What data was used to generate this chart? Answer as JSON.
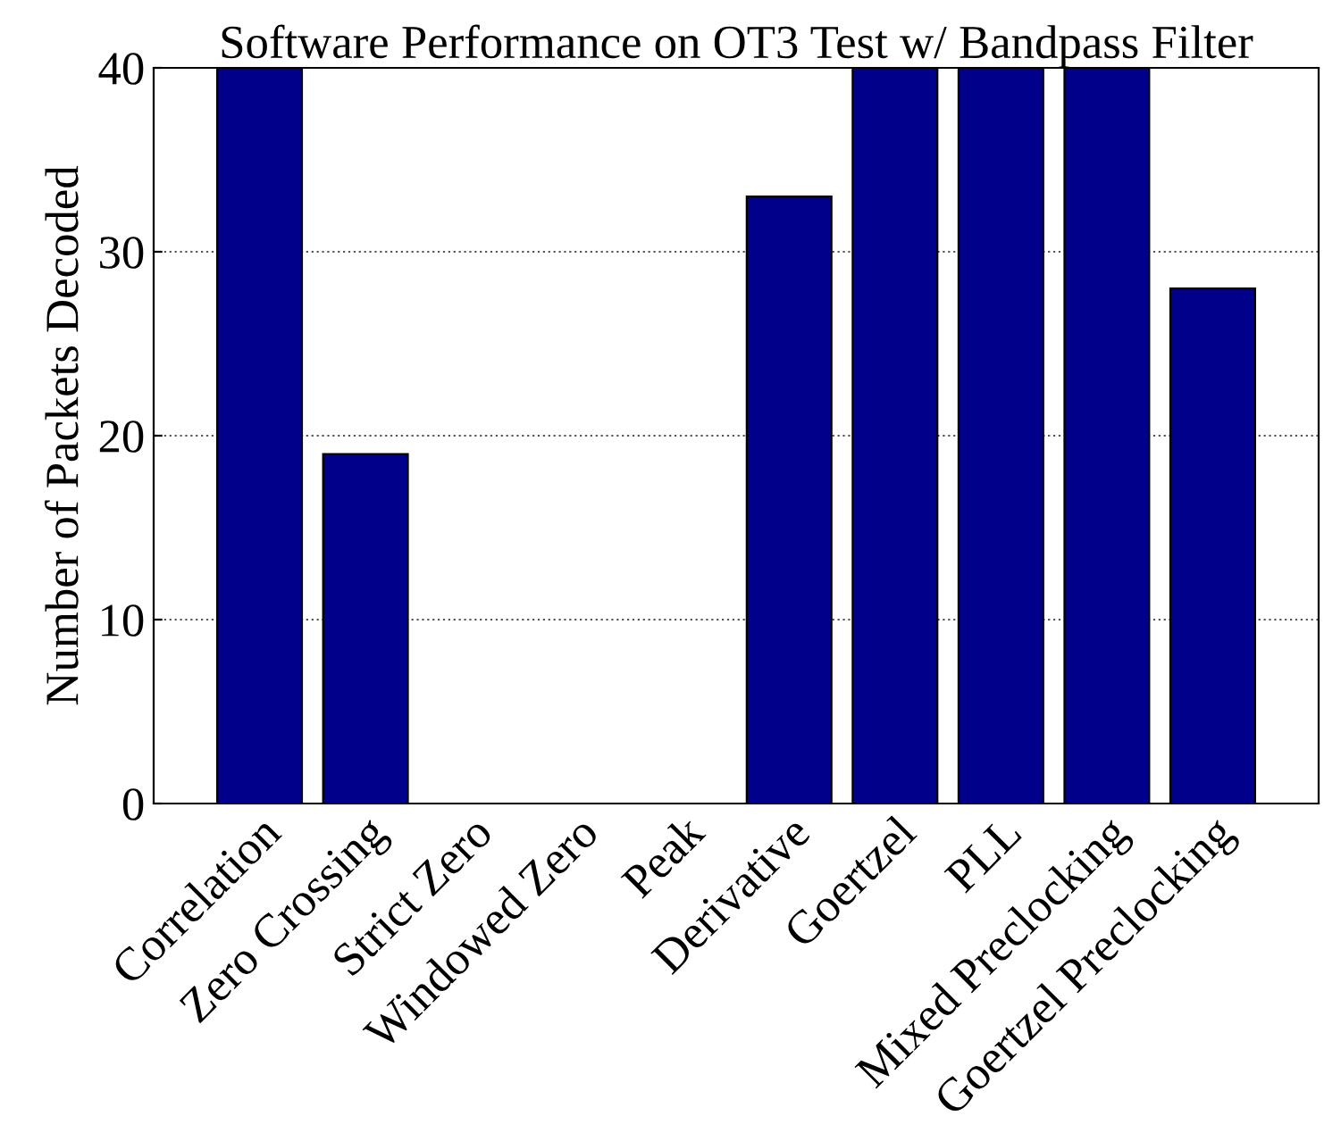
{
  "chart_data": {
    "type": "bar",
    "title": "Software Performance on OT3 Test w/ Bandpass Filter",
    "ylabel": "Number of Packets Decoded",
    "categories": [
      "Correlation",
      "Zero Crossing",
      "Strict Zero",
      "Windowed Zero",
      "Peak",
      "Derivative",
      "Goertzel",
      "PLL",
      "Mixed Preclocking",
      "Goertzel Preclocking"
    ],
    "values": [
      40,
      19,
      0,
      0,
      0,
      33,
      40,
      40,
      40,
      28
    ],
    "color": "#00008b",
    "ylim": [
      0,
      40
    ],
    "yticks": [
      0,
      10,
      20,
      30,
      40
    ],
    "grid": "y",
    "legend": false
  }
}
